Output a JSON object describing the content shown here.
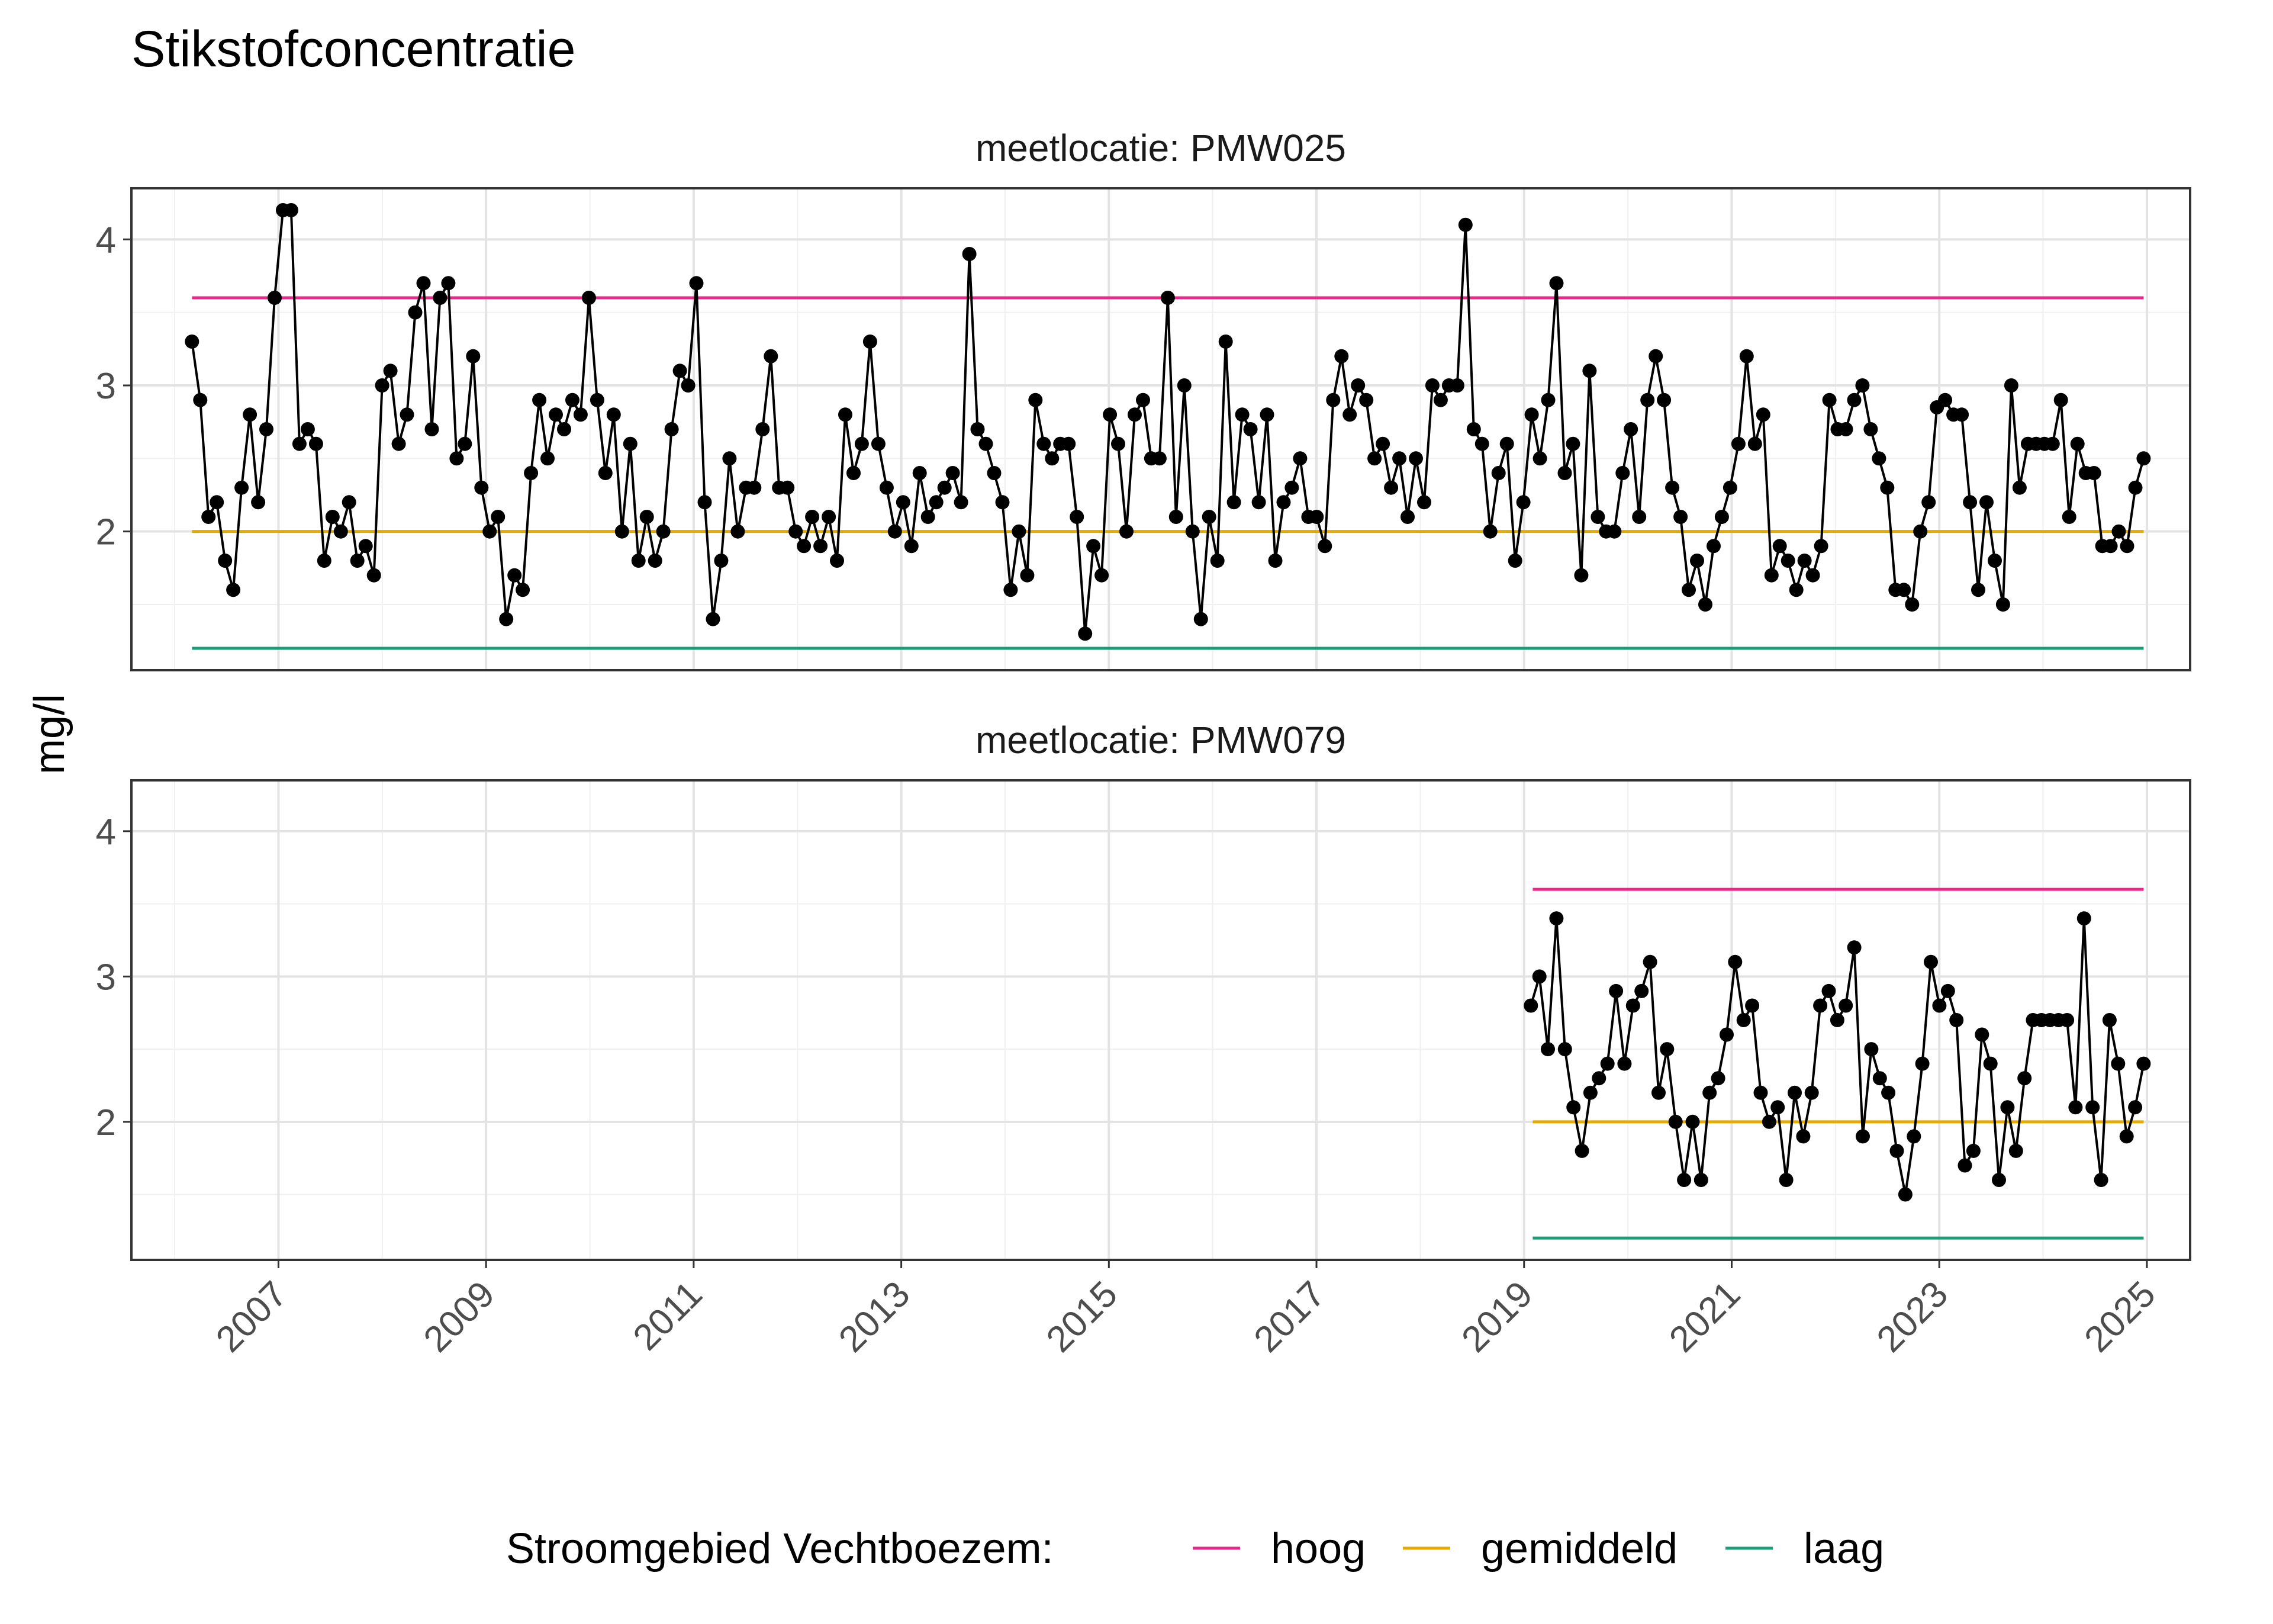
{
  "chart_data": {
    "type": "line",
    "title": "Stikstofconcentratie",
    "ylabel": "mg/l",
    "xlabel": "",
    "x_ticks": [
      "2007",
      "2009",
      "2011",
      "2013",
      "2015",
      "2017",
      "2019",
      "2021",
      "2023",
      "2025"
    ],
    "x_range": [
      "2005-08-01",
      "2025-06-01"
    ],
    "y_ticks": [
      "2",
      "3",
      "4"
    ],
    "ylim": [
      1.05,
      4.35
    ],
    "grid": true,
    "legend": {
      "position": "bottom",
      "title": "Stroomgebied Vechtboezem:",
      "items": [
        {
          "label": "hoog",
          "color": "#e7298a"
        },
        {
          "label": "gemiddeld",
          "color": "#e6ab02"
        },
        {
          "label": "laag",
          "color": "#1b9e77"
        }
      ]
    },
    "panels": [
      {
        "label": "meetlocatie: PMW025",
        "reference_lines": [
          {
            "name": "hoog",
            "value": 3.6,
            "x_start": "2006-03-01",
            "x_end": "2024-12-20",
            "color": "#e7298a"
          },
          {
            "name": "gemiddeld",
            "value": 2.0,
            "x_start": "2006-03-01",
            "x_end": "2024-12-20",
            "color": "#e6ab02"
          },
          {
            "name": "laag",
            "value": 1.2,
            "x_start": "2006-03-01",
            "x_end": "2024-12-20",
            "color": "#1b9e77"
          }
        ],
        "series": [
          {
            "x_start": "2006-03-01",
            "x_end": "2024-12-20",
            "values": [
              3.3,
              2.9,
              2.1,
              2.2,
              1.8,
              1.6,
              2.3,
              2.8,
              2.2,
              2.7,
              3.6,
              4.2,
              4.2,
              2.6,
              2.7,
              2.6,
              1.8,
              2.1,
              2.0,
              2.2,
              1.8,
              1.9,
              1.7,
              3.0,
              3.1,
              2.6,
              2.8,
              3.5,
              3.7,
              2.7,
              3.6,
              3.7,
              2.5,
              2.6,
              3.2,
              2.3,
              2.0,
              2.1,
              1.4,
              1.7,
              1.6,
              2.4,
              2.9,
              2.5,
              2.8,
              2.7,
              2.9,
              2.8,
              3.6,
              2.9,
              2.4,
              2.8,
              2.0,
              2.6,
              1.8,
              2.1,
              1.8,
              2.0,
              2.7,
              3.1,
              3.0,
              3.7,
              2.2,
              1.4,
              1.8,
              2.5,
              2.0,
              2.3,
              2.3,
              2.7,
              3.2,
              2.3,
              2.3,
              2.0,
              1.9,
              2.1,
              1.9,
              2.1,
              1.8,
              2.8,
              2.4,
              2.6,
              3.3,
              2.6,
              2.3,
              2.0,
              2.2,
              1.9,
              2.4,
              2.1,
              2.2,
              2.3,
              2.4,
              2.2,
              3.9,
              2.7,
              2.6,
              2.4,
              2.2,
              1.6,
              2.0,
              1.7,
              2.9,
              2.6,
              2.5,
              2.6,
              2.6,
              2.1,
              1.3,
              1.9,
              1.7,
              2.8,
              2.6,
              2.0,
              2.8,
              2.9,
              2.5,
              2.5,
              3.6,
              2.1,
              3.0,
              2.0,
              1.4,
              2.1,
              1.8,
              3.3,
              2.2,
              2.8,
              2.7,
              2.2,
              2.8,
              1.8,
              2.2,
              2.3,
              2.5,
              2.1,
              2.1,
              1.9,
              2.9,
              3.2,
              2.8,
              3.0,
              2.9,
              2.5,
              2.6,
              2.3,
              2.5,
              2.1,
              2.5,
              2.2,
              3.0,
              2.9,
              3.0,
              3.0,
              4.1,
              2.7,
              2.6,
              2.0,
              2.4,
              2.6,
              1.8,
              2.2,
              2.8,
              2.5,
              2.9,
              3.7,
              2.4,
              2.6,
              1.7,
              3.1,
              2.1,
              2.0,
              2.0,
              2.4,
              2.7,
              2.1,
              2.9,
              3.2,
              2.9,
              2.3,
              2.1,
              1.6,
              1.8,
              1.5,
              1.9,
              2.1,
              2.3,
              2.6,
              3.2,
              2.6,
              2.8,
              1.7,
              1.9,
              1.8,
              1.6,
              1.8,
              1.7,
              1.9,
              2.9,
              2.7,
              2.7,
              2.9,
              3.0,
              2.7,
              2.5,
              2.3,
              1.6,
              1.6,
              1.5,
              2.0,
              2.2,
              2.85,
              2.9,
              2.8,
              2.8,
              2.2,
              1.6,
              2.2,
              1.8,
              1.5,
              3.0,
              2.3,
              2.6,
              2.6,
              2.6,
              2.6,
              2.9,
              2.1,
              2.6,
              2.4,
              2.4,
              1.9,
              1.9,
              2.0,
              1.9,
              2.3,
              2.5
            ]
          }
        ]
      },
      {
        "label": "meetlocatie: PMW079",
        "reference_lines": [
          {
            "name": "hoog",
            "value": 3.6,
            "x_start": "2019-02-01",
            "x_end": "2024-12-20",
            "color": "#e7298a"
          },
          {
            "name": "gemiddeld",
            "value": 2.0,
            "x_start": "2019-02-01",
            "x_end": "2024-12-20",
            "color": "#e6ab02"
          },
          {
            "name": "laag",
            "value": 1.2,
            "x_start": "2019-02-01",
            "x_end": "2024-12-20",
            "color": "#1b9e77"
          }
        ],
        "series": [
          {
            "x_start": "2019-01-25",
            "x_end": "2024-12-20",
            "values": [
              2.8,
              3.0,
              2.5,
              3.4,
              2.5,
              2.1,
              1.8,
              2.2,
              2.3,
              2.4,
              2.9,
              2.4,
              2.8,
              2.9,
              3.1,
              2.2,
              2.5,
              2.0,
              1.6,
              2.0,
              1.6,
              2.2,
              2.3,
              2.6,
              3.1,
              2.7,
              2.8,
              2.2,
              2.0,
              2.1,
              1.6,
              2.2,
              1.9,
              2.2,
              2.8,
              2.9,
              2.7,
              2.8,
              3.2,
              1.9,
              2.5,
              2.3,
              2.2,
              1.8,
              1.5,
              1.9,
              2.4,
              3.1,
              2.8,
              2.9,
              2.7,
              1.7,
              1.8,
              2.6,
              2.4,
              1.6,
              2.1,
              1.8,
              2.3,
              2.7,
              2.7,
              2.7,
              2.7,
              2.7,
              2.1,
              3.4,
              2.1,
              1.6,
              2.7,
              2.4,
              1.9,
              2.1,
              2.4
            ]
          }
        ]
      }
    ]
  }
}
